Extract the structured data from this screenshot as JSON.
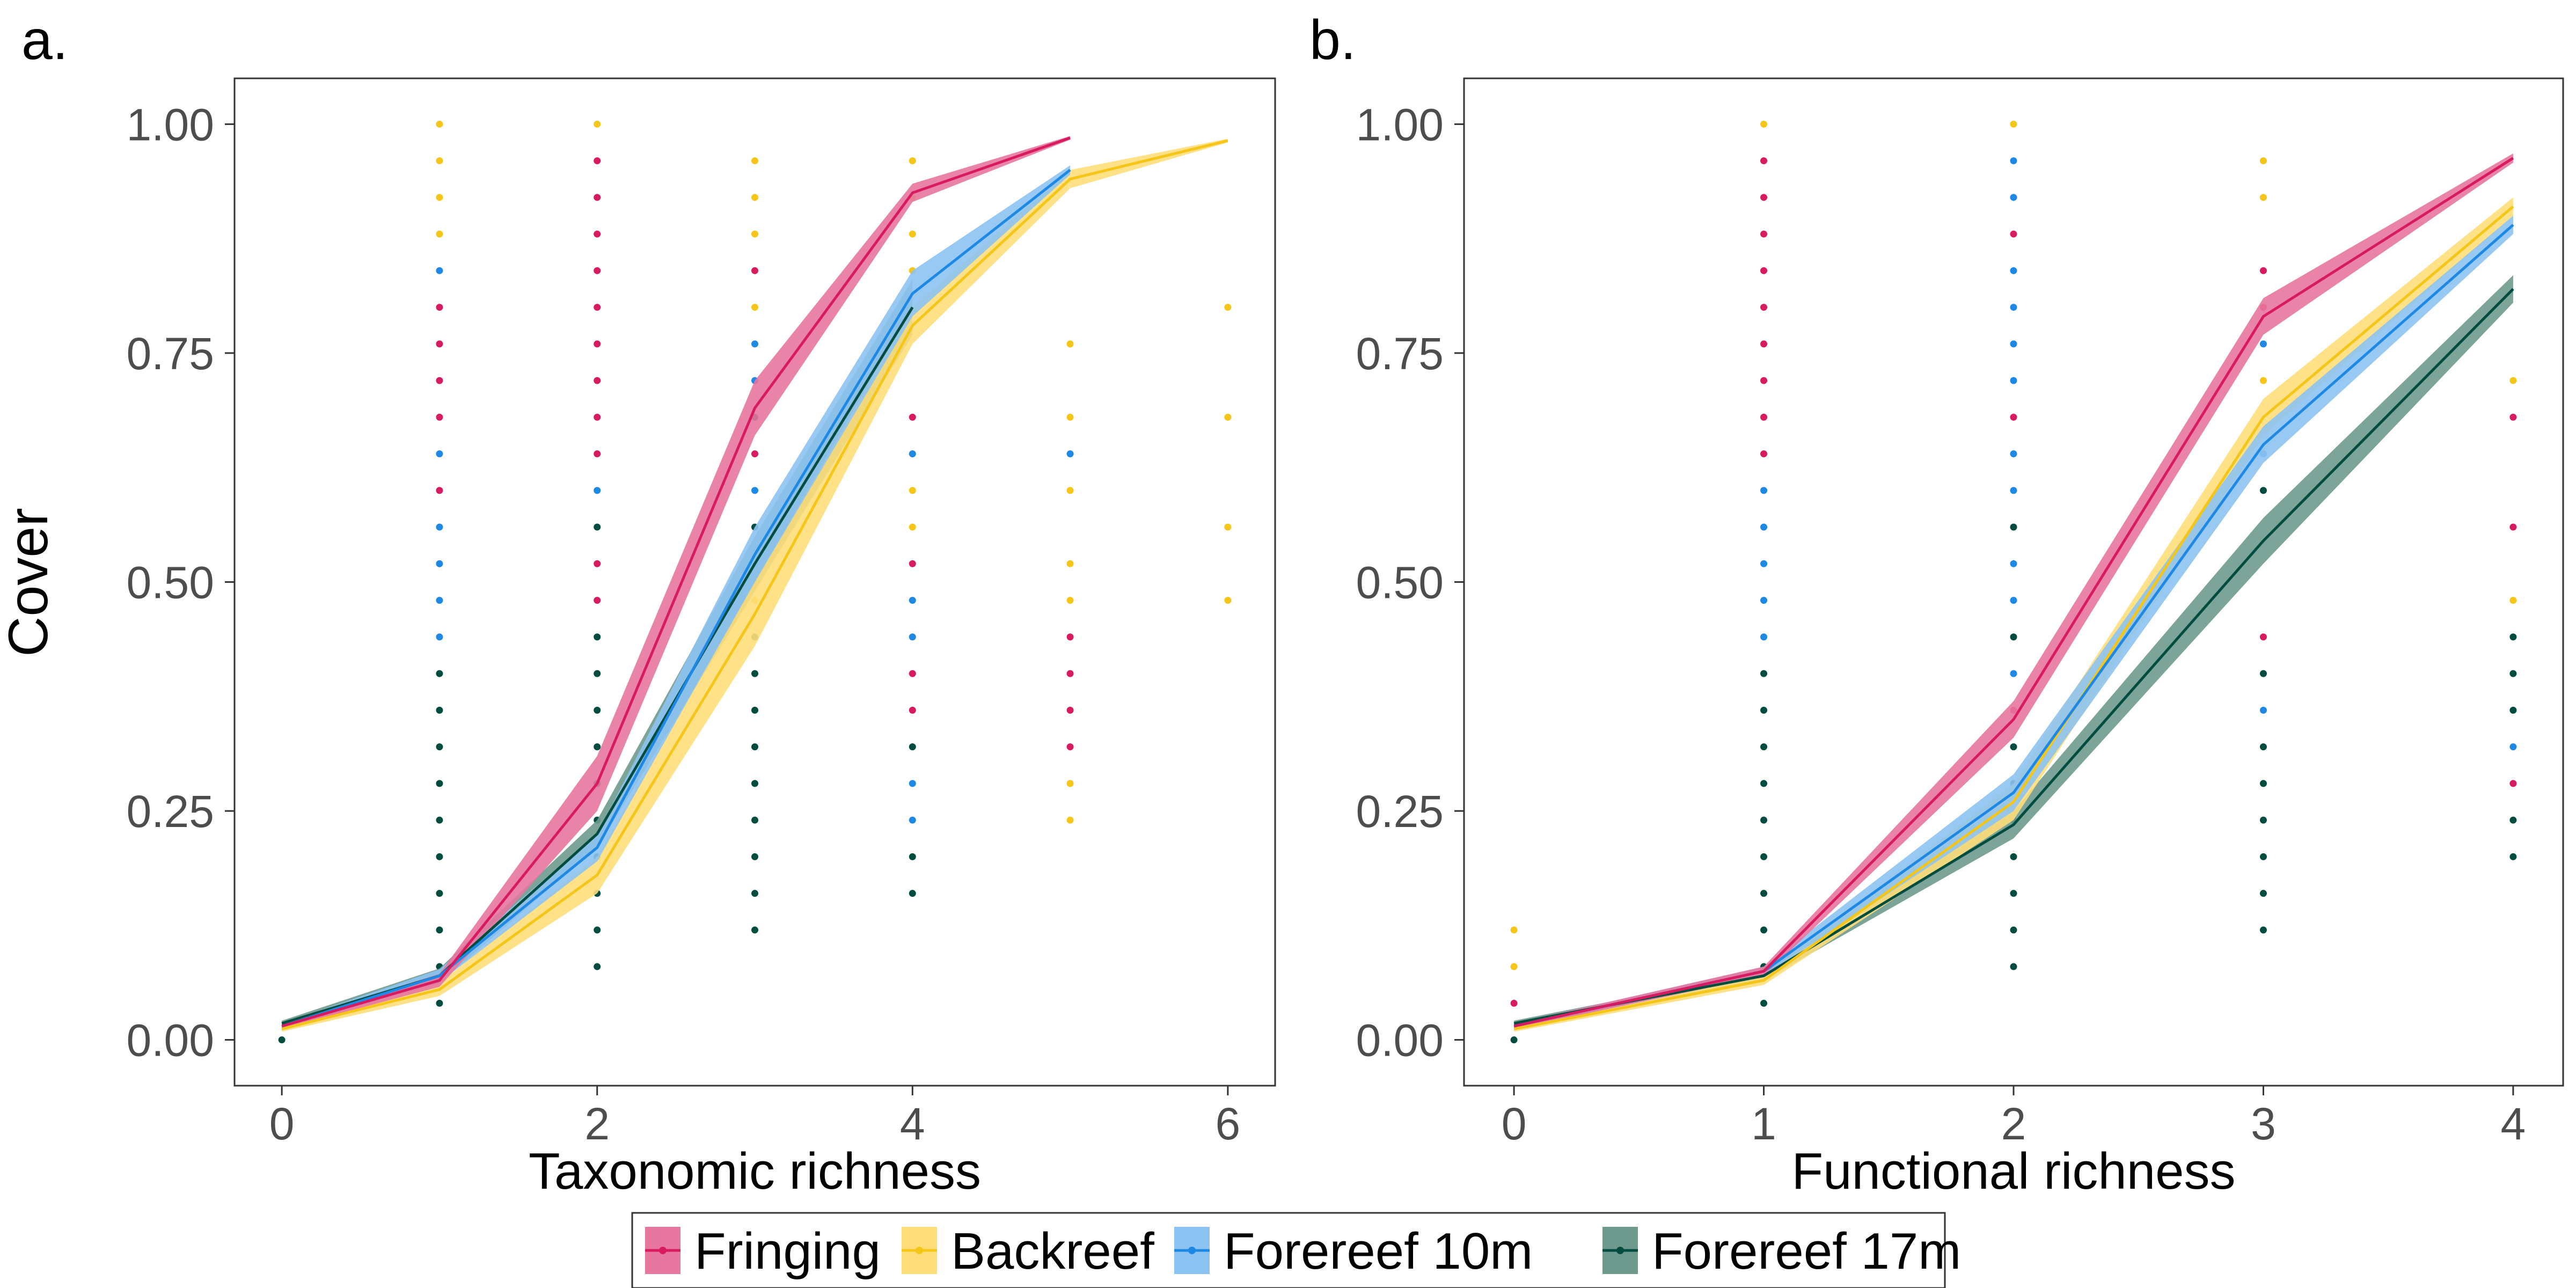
{
  "figure": {
    "ylabel": "Cover",
    "legend": {
      "placement": "bottom-center",
      "entries": [
        {
          "key": "fringing",
          "label": "Fringing",
          "color": "#D81B60",
          "band": "#E7779F"
        },
        {
          "key": "backreef",
          "label": "Backreef",
          "color": "#F5C518",
          "band": "#FFDE7A"
        },
        {
          "key": "forereef10",
          "label": "Forereef 10m",
          "color": "#1E88E5",
          "band": "#8DC3F2"
        },
        {
          "key": "forereef17",
          "label": "Forereef 17m",
          "color": "#004D40",
          "band": "#6E9A8E"
        }
      ]
    }
  },
  "chart_data": [
    {
      "panel_label": "a.",
      "type": "line",
      "xlabel": "Taxonomic richness",
      "ylabel": "Cover",
      "xlim": [
        -0.3,
        6.3
      ],
      "ylim": [
        -0.05,
        1.05
      ],
      "x_ticks": [
        0,
        2,
        4,
        6
      ],
      "x_tick_labels": [
        "0",
        "2",
        "4",
        "6"
      ],
      "y_ticks": [
        0,
        0.25,
        0.5,
        0.75,
        1.0
      ],
      "y_tick_labels": [
        "0.00",
        "0.25",
        "0.50",
        "0.75",
        "1.00"
      ],
      "grid": false,
      "series": [
        {
          "key": "fringing",
          "x": [
            0,
            1,
            2,
            3,
            4,
            5
          ],
          "y": [
            0.015,
            0.065,
            0.28,
            0.69,
            0.925,
            0.985
          ],
          "lower": [
            0.012,
            0.058,
            0.25,
            0.66,
            0.915,
            0.983
          ],
          "upper": [
            0.018,
            0.072,
            0.31,
            0.72,
            0.935,
            0.987
          ]
        },
        {
          "key": "backreef",
          "x": [
            0,
            1,
            2,
            3,
            4,
            5,
            6
          ],
          "y": [
            0.012,
            0.055,
            0.18,
            0.465,
            0.78,
            0.94,
            0.982
          ],
          "lower": [
            0.009,
            0.048,
            0.16,
            0.43,
            0.76,
            0.93,
            0.98
          ],
          "upper": [
            0.015,
            0.062,
            0.2,
            0.5,
            0.8,
            0.95,
            0.984
          ]
        },
        {
          "key": "forereef10",
          "x": [
            0,
            1,
            2,
            3,
            4,
            5
          ],
          "y": [
            0.015,
            0.07,
            0.21,
            0.53,
            0.815,
            0.95
          ],
          "lower": [
            0.012,
            0.063,
            0.195,
            0.5,
            0.79,
            0.945
          ],
          "upper": [
            0.018,
            0.077,
            0.225,
            0.56,
            0.84,
            0.955
          ]
        },
        {
          "key": "forereef17",
          "x": [
            0,
            1,
            2,
            3,
            4
          ],
          "y": [
            0.018,
            0.07,
            0.225,
            0.52,
            0.8
          ],
          "lower": [
            0.015,
            0.062,
            0.21,
            0.49,
            0.77
          ],
          "upper": [
            0.021,
            0.078,
            0.24,
            0.55,
            0.83
          ]
        }
      ],
      "points": [
        {
          "key": "forereef17",
          "x": 0,
          "y": [
            0.0
          ]
        },
        {
          "key": "backreef",
          "x": 1,
          "y": [
            1.0,
            0.96,
            0.92,
            0.88
          ]
        },
        {
          "key": "forereef10",
          "x": 1,
          "y": [
            0.84
          ]
        },
        {
          "key": "fringing",
          "x": 1,
          "y": [
            0.8,
            0.76,
            0.72,
            0.68
          ]
        },
        {
          "key": "forereef10",
          "x": 1,
          "y": [
            0.64
          ]
        },
        {
          "key": "fringing",
          "x": 1,
          "y": [
            0.6
          ]
        },
        {
          "key": "forereef10",
          "x": 1,
          "y": [
            0.56,
            0.52,
            0.48,
            0.44
          ]
        },
        {
          "key": "forereef17",
          "x": 1,
          "y": [
            0.4,
            0.36,
            0.32,
            0.28,
            0.24,
            0.2,
            0.16,
            0.12,
            0.08,
            0.04
          ]
        },
        {
          "key": "backreef",
          "x": 2,
          "y": [
            1.0
          ]
        },
        {
          "key": "fringing",
          "x": 2,
          "y": [
            0.96,
            0.92,
            0.88,
            0.84,
            0.8,
            0.76,
            0.72,
            0.68,
            0.64
          ]
        },
        {
          "key": "forereef10",
          "x": 2,
          "y": [
            0.6
          ]
        },
        {
          "key": "fringing",
          "x": 2,
          "y": [
            0.52,
            0.48
          ]
        },
        {
          "key": "forereef17",
          "x": 2,
          "y": [
            0.56,
            0.44,
            0.4,
            0.36,
            0.32,
            0.28,
            0.24,
            0.2,
            0.16,
            0.12,
            0.08
          ]
        },
        {
          "key": "backreef",
          "x": 3,
          "y": [
            0.96,
            0.92,
            0.88
          ]
        },
        {
          "key": "fringing",
          "x": 3,
          "y": [
            0.84,
            0.64
          ]
        },
        {
          "key": "forereef10",
          "x": 3,
          "y": [
            0.76,
            0.72,
            0.6
          ]
        },
        {
          "key": "backreef",
          "x": 3,
          "y": [
            0.8,
            0.48
          ]
        },
        {
          "key": "forereef17",
          "x": 3,
          "y": [
            0.68,
            0.56,
            0.52,
            0.44,
            0.4,
            0.36,
            0.32,
            0.28,
            0.24,
            0.2,
            0.16,
            0.12
          ]
        },
        {
          "key": "backreef",
          "x": 4,
          "y": [
            0.96,
            0.92,
            0.88,
            0.84,
            0.6,
            0.56
          ]
        },
        {
          "key": "fringing",
          "x": 4,
          "y": [
            0.68,
            0.52,
            0.4,
            0.36
          ]
        },
        {
          "key": "forereef10",
          "x": 4,
          "y": [
            0.64,
            0.48,
            0.44,
            0.28,
            0.24
          ]
        },
        {
          "key": "forereef17",
          "x": 4,
          "y": [
            0.32,
            0.2,
            0.16
          ]
        },
        {
          "key": "backreef",
          "x": 5,
          "y": [
            0.76,
            0.68,
            0.6,
            0.52,
            0.48,
            0.28,
            0.24
          ]
        },
        {
          "key": "forereef10",
          "x": 5,
          "y": [
            0.64
          ]
        },
        {
          "key": "fringing",
          "x": 5,
          "y": [
            0.44,
            0.4,
            0.36,
            0.32
          ]
        },
        {
          "key": "backreef",
          "x": 6,
          "y": [
            0.8,
            0.68,
            0.56,
            0.48
          ]
        }
      ]
    },
    {
      "panel_label": "b.",
      "type": "line",
      "xlabel": "Functional richness",
      "ylabel": "",
      "xlim": [
        -0.2,
        4.2
      ],
      "ylim": [
        -0.05,
        1.05
      ],
      "x_ticks": [
        0,
        1,
        2,
        3,
        4
      ],
      "x_tick_labels": [
        "0",
        "1",
        "2",
        "3",
        "4"
      ],
      "y_ticks": [
        0,
        0.25,
        0.5,
        0.75,
        1.0
      ],
      "y_tick_labels": [
        "0.00",
        "0.25",
        "0.50",
        "0.75",
        "1.00"
      ],
      "grid": false,
      "series": [
        {
          "key": "fringing",
          "x": [
            0,
            1,
            2,
            3,
            4
          ],
          "y": [
            0.015,
            0.075,
            0.35,
            0.79,
            0.963
          ],
          "lower": [
            0.012,
            0.07,
            0.33,
            0.77,
            0.958
          ],
          "upper": [
            0.018,
            0.08,
            0.37,
            0.81,
            0.968
          ]
        },
        {
          "key": "backreef",
          "x": [
            0,
            1,
            2,
            3,
            4
          ],
          "y": [
            0.012,
            0.065,
            0.26,
            0.68,
            0.91
          ],
          "lower": [
            0.009,
            0.06,
            0.24,
            0.66,
            0.9
          ],
          "upper": [
            0.015,
            0.07,
            0.28,
            0.7,
            0.92
          ]
        },
        {
          "key": "forereef10",
          "x": [
            0,
            1,
            2,
            3,
            4
          ],
          "y": [
            0.015,
            0.075,
            0.27,
            0.65,
            0.89
          ],
          "lower": [
            0.012,
            0.07,
            0.25,
            0.63,
            0.88
          ],
          "upper": [
            0.018,
            0.08,
            0.29,
            0.67,
            0.9
          ]
        },
        {
          "key": "forereef17",
          "x": [
            0,
            1,
            2,
            3,
            4
          ],
          "y": [
            0.018,
            0.07,
            0.235,
            0.545,
            0.82
          ],
          "lower": [
            0.015,
            0.065,
            0.22,
            0.52,
            0.805
          ],
          "upper": [
            0.021,
            0.075,
            0.25,
            0.57,
            0.835
          ]
        }
      ],
      "points": [
        {
          "key": "backreef",
          "x": 0,
          "y": [
            0.12,
            0.08
          ]
        },
        {
          "key": "fringing",
          "x": 0,
          "y": [
            0.04
          ]
        },
        {
          "key": "forereef17",
          "x": 0,
          "y": [
            0.0
          ]
        },
        {
          "key": "backreef",
          "x": 1,
          "y": [
            1.0
          ]
        },
        {
          "key": "fringing",
          "x": 1,
          "y": [
            0.96,
            0.92,
            0.88,
            0.84,
            0.8,
            0.76,
            0.72,
            0.68,
            0.64
          ]
        },
        {
          "key": "forereef10",
          "x": 1,
          "y": [
            0.6,
            0.56,
            0.52,
            0.48,
            0.44
          ]
        },
        {
          "key": "forereef17",
          "x": 1,
          "y": [
            0.4,
            0.36,
            0.32,
            0.28,
            0.24,
            0.2,
            0.16,
            0.12,
            0.08,
            0.04
          ]
        },
        {
          "key": "backreef",
          "x": 2,
          "y": [
            1.0
          ]
        },
        {
          "key": "forereef10",
          "x": 2,
          "y": [
            0.96,
            0.92,
            0.84,
            0.8,
            0.76,
            0.72,
            0.64,
            0.6,
            0.52,
            0.48,
            0.4
          ]
        },
        {
          "key": "fringing",
          "x": 2,
          "y": [
            0.88,
            0.68,
            0.36
          ]
        },
        {
          "key": "forereef17",
          "x": 2,
          "y": [
            0.56,
            0.44,
            0.32,
            0.28,
            0.24,
            0.2,
            0.16,
            0.12,
            0.08
          ]
        },
        {
          "key": "backreef",
          "x": 3,
          "y": [
            0.96,
            0.92,
            0.72
          ]
        },
        {
          "key": "fringing",
          "x": 3,
          "y": [
            0.84,
            0.8,
            0.44
          ]
        },
        {
          "key": "forereef10",
          "x": 3,
          "y": [
            0.76,
            0.64,
            0.36
          ]
        },
        {
          "key": "forereef17",
          "x": 3,
          "y": [
            0.6,
            0.4,
            0.32,
            0.28,
            0.24,
            0.2,
            0.16,
            0.12
          ]
        },
        {
          "key": "backreef",
          "x": 4,
          "y": [
            0.72,
            0.48
          ]
        },
        {
          "key": "fringing",
          "x": 4,
          "y": [
            0.68,
            0.56,
            0.28
          ]
        },
        {
          "key": "forereef10",
          "x": 4,
          "y": [
            0.32
          ]
        },
        {
          "key": "forereef17",
          "x": 4,
          "y": [
            0.44,
            0.4,
            0.36,
            0.24,
            0.2
          ]
        }
      ]
    }
  ]
}
